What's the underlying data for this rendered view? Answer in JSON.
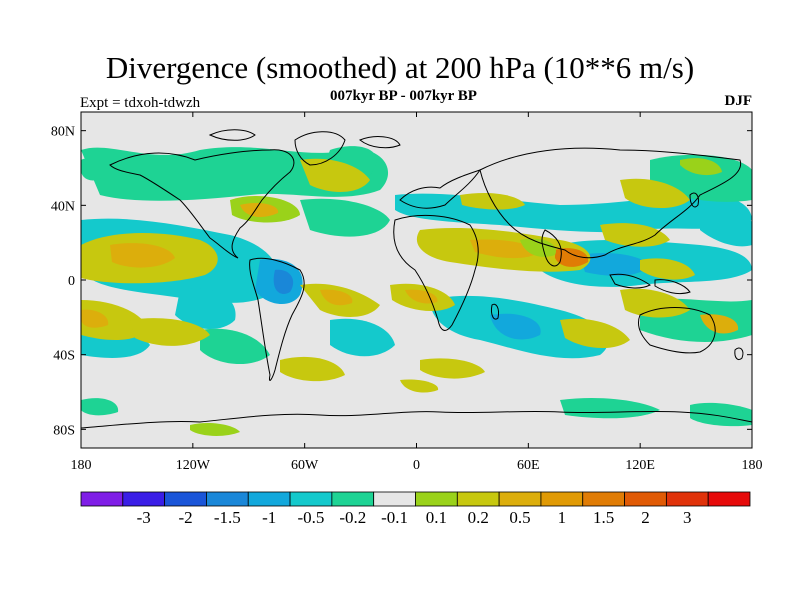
{
  "title": "Divergence (smoothed) at 200 hPa (10**6 m/s)",
  "subtitle": "007kyr BP - 007kyr BP",
  "experiment": "Expt = tdxoh-tdwzh",
  "season": "DJF",
  "map": {
    "projection": "cylindrical-equidistant",
    "lon_range": [
      -180,
      180
    ],
    "lat_range": [
      -90,
      90
    ],
    "background_color": "#e6e6e6",
    "lon_ticks": [
      {
        "lon": -180,
        "label": "180"
      },
      {
        "lon": -120,
        "label": "120W"
      },
      {
        "lon": -60,
        "label": "60W"
      },
      {
        "lon": 0,
        "label": "0"
      },
      {
        "lon": 60,
        "label": "60E"
      },
      {
        "lon": 120,
        "label": "120E"
      },
      {
        "lon": 180,
        "label": "180"
      }
    ],
    "lat_ticks": [
      {
        "lat": 80,
        "label": "80N"
      },
      {
        "lat": 40,
        "label": "40N"
      },
      {
        "lat": 0,
        "label": "0"
      },
      {
        "lat": -40,
        "label": "40S"
      },
      {
        "lat": -80,
        "label": "80S"
      }
    ]
  },
  "colorbar": {
    "colors": [
      "#7f1ee6",
      "#3a1ee6",
      "#1a55d8",
      "#1a87d8",
      "#12a8dc",
      "#14c9cc",
      "#1ed394",
      "#e6e6e6",
      "#9ad21a",
      "#c7c80f",
      "#dcae0c",
      "#e09a05",
      "#e07c05",
      "#e05a05",
      "#e0320a",
      "#e60a0a"
    ],
    "labels": [
      "-3",
      "-2",
      "-1.5",
      "-1",
      "-0.5",
      "-0.2",
      "-0.1",
      "0.1",
      "0.2",
      "0.5",
      "1",
      "1.5",
      "2",
      "3"
    ]
  }
}
